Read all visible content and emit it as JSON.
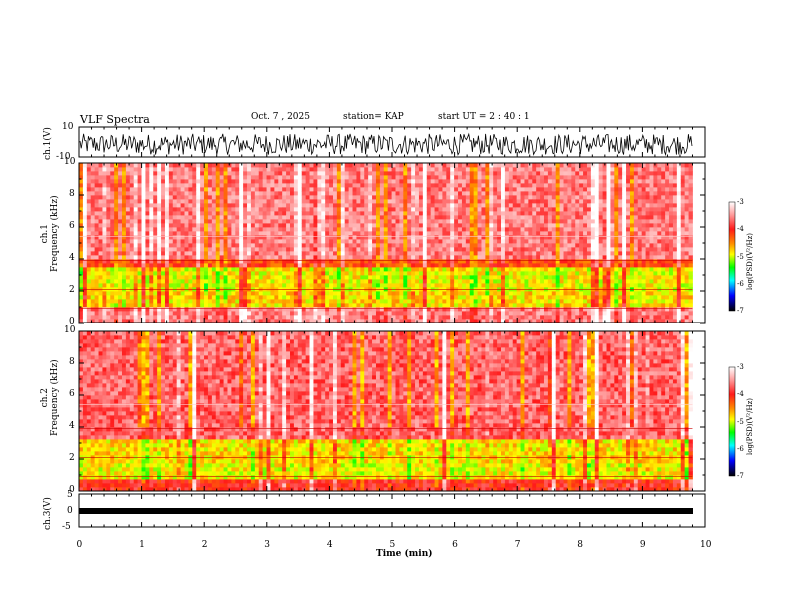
{
  "title": "VLF Spectra",
  "date": "Oct. 7 , 2025",
  "station": "station= KAP",
  "start": "start  UT =   2 : 40 : 1",
  "colors": {
    "background": "#ffffff",
    "trace": "#000000"
  },
  "chart_data": [
    {
      "type": "line",
      "name": "ch1-waveform",
      "ylabel": "ch.1(V)",
      "ylim": [
        -10,
        10
      ],
      "yticks": [
        "10",
        "-10"
      ],
      "xlim": [
        0,
        10
      ],
      "description_series": "noisy voltage oscillating between about -9 and +7 V"
    },
    {
      "type": "heatmap",
      "name": "ch1-spectrogram",
      "ylabel": "ch.1\nFrequency  (kHz)",
      "ylabel_line1": "ch.1",
      "ylabel_line2": "Frequency  (kHz)",
      "ylim": [
        0,
        10
      ],
      "yticks": [
        "0",
        "2",
        "4",
        "6",
        "8",
        "10"
      ],
      "xlim": [
        0,
        9.8
      ],
      "colorbar": {
        "label": "log(PSD)(V²/Hz)",
        "range": [
          -7,
          -3
        ],
        "ticks": [
          "-3",
          "-4",
          "-5",
          "-6",
          "-7"
        ]
      },
      "bands_khz": [
        [
          0,
          1.0,
          -3.6
        ],
        [
          1.0,
          2.0,
          -4.8
        ],
        [
          2.0,
          3.4,
          -4.9
        ],
        [
          3.4,
          4.0,
          -4.2
        ],
        [
          4.0,
          10.0,
          -3.6
        ]
      ]
    },
    {
      "type": "heatmap",
      "name": "ch2-spectrogram",
      "ylabel": "ch.2\nFrequency  (kHz)",
      "ylabel_line1": "ch.2",
      "ylabel_line2": "Frequency  (kHz)",
      "ylim": [
        0,
        10
      ],
      "yticks": [
        "0",
        "2",
        "4",
        "6",
        "8",
        "10"
      ],
      "xlim": [
        0,
        9.8
      ],
      "colorbar": {
        "label": "log(PSD)(V²/Hz)",
        "range": [
          -7,
          -3
        ],
        "ticks": [
          "-3",
          "-4",
          "-5",
          "-6",
          "-7"
        ]
      },
      "bands_khz": [
        [
          0,
          0.7,
          -4.0
        ],
        [
          0.7,
          1.8,
          -4.9
        ],
        [
          1.8,
          3.2,
          -4.8
        ],
        [
          3.2,
          10.0,
          -3.7
        ]
      ]
    },
    {
      "type": "line",
      "name": "ch3-waveform",
      "ylabel": "ch.3(V)",
      "ylim": [
        -5,
        5
      ],
      "yticks": [
        "5",
        "0",
        "-5"
      ],
      "xlim": [
        0,
        10
      ],
      "description_series": "constant level near -1 V with very small fluctuation"
    }
  ],
  "xaxis": {
    "label": "Time  (min)",
    "range": [
      0,
      10
    ],
    "ticks": [
      "0",
      "1",
      "2",
      "3",
      "4",
      "5",
      "6",
      "7",
      "8",
      "9",
      "10"
    ]
  }
}
